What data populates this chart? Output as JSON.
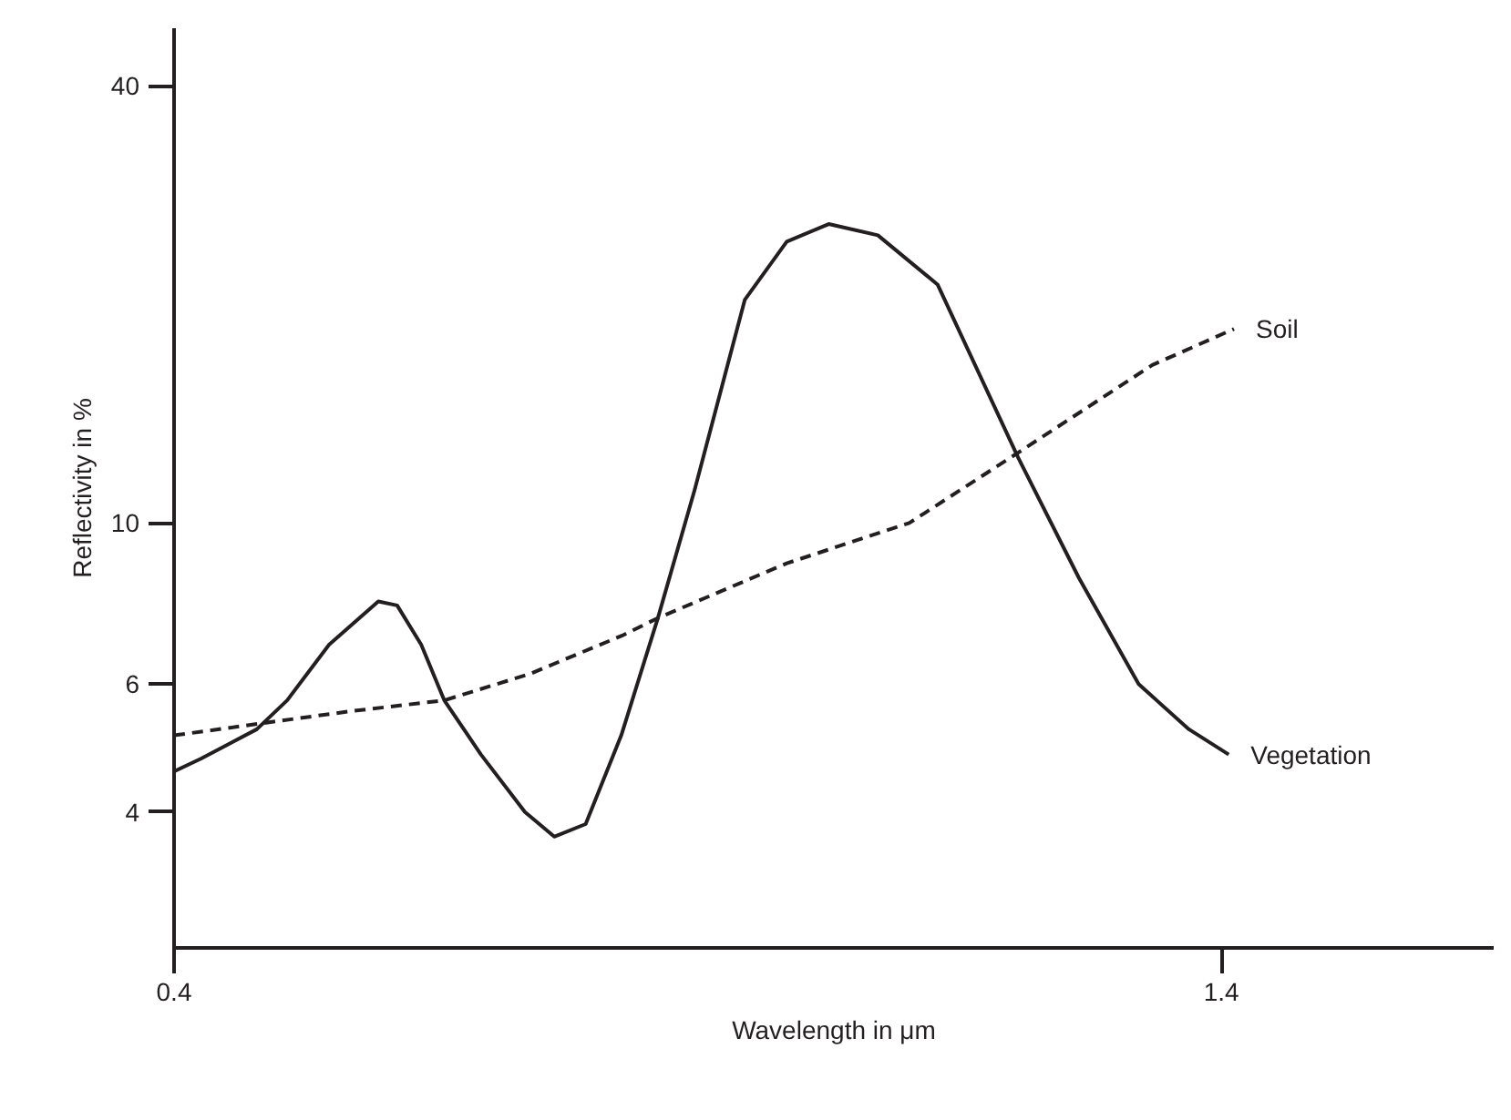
{
  "chart_data": {
    "type": "line",
    "xlabel": "Wavelength in μm",
    "ylabel": "Reflectivity in %",
    "log": "y",
    "xlim": [
      0.4,
      1.66
    ],
    "ylim": [
      2.6,
      48
    ],
    "xticks": [
      0.4,
      1.4
    ],
    "yticks": [
      4,
      6,
      10,
      40
    ],
    "grid": false,
    "marker": "none",
    "series": [
      {
        "name": "Vegetation",
        "color": "#231f20",
        "line_style": "solid",
        "x": [
          0.4,
          0.426,
          0.479,
          0.508,
          0.548,
          0.595,
          0.613,
          0.636,
          0.658,
          0.693,
          0.735,
          0.763,
          0.793,
          0.827,
          0.862,
          0.897,
          0.945,
          0.985,
          1.025,
          1.072,
          1.129,
          1.206,
          1.264,
          1.321,
          1.369,
          1.407
        ],
        "values": [
          4.55,
          4.74,
          5.2,
          5.7,
          6.8,
          7.8,
          7.7,
          6.8,
          5.7,
          4.8,
          4.0,
          3.7,
          3.85,
          5.1,
          7.4,
          11.1,
          20.3,
          24.4,
          25.8,
          24.9,
          21.3,
          12.3,
          8.4,
          6.0,
          5.2,
          4.8
        ]
      },
      {
        "name": "Soil",
        "color": "#231f20",
        "line_style": "dashed",
        "x": [
          0.4,
          0.484,
          0.566,
          0.658,
          0.74,
          0.828,
          0.862,
          0.985,
          1.102,
          1.206,
          1.334,
          1.412
        ],
        "values": [
          5.1,
          5.3,
          5.5,
          5.7,
          6.2,
          7.0,
          7.4,
          8.8,
          10.0,
          12.5,
          16.5,
          18.5
        ]
      }
    ]
  }
}
